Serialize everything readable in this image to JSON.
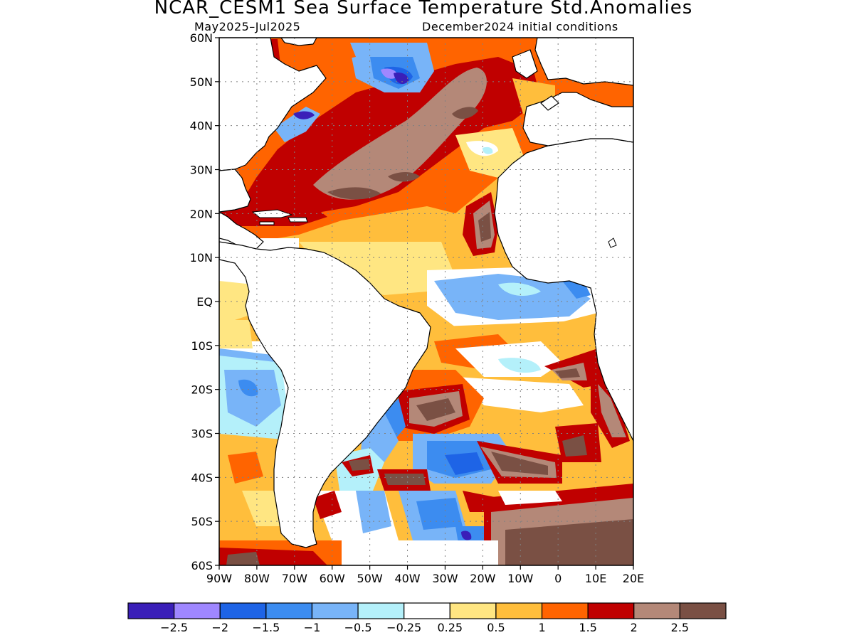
{
  "title": "NCAR_CESM1 Sea Surface Temperature Std.Anomalies",
  "subtitle_left": "May2025–Jul2025",
  "subtitle_right": "December2024 initial conditions",
  "map": {
    "lon_range": [
      -90,
      20
    ],
    "lat_range": [
      -60,
      60
    ],
    "y_ticks": [
      {
        "value": 60,
        "label": "60N"
      },
      {
        "value": 50,
        "label": "50N"
      },
      {
        "value": 40,
        "label": "40N"
      },
      {
        "value": 30,
        "label": "30N"
      },
      {
        "value": 20,
        "label": "20N"
      },
      {
        "value": 10,
        "label": "10N"
      },
      {
        "value": 0,
        "label": "EQ"
      },
      {
        "value": -10,
        "label": "10S"
      },
      {
        "value": -20,
        "label": "20S"
      },
      {
        "value": -30,
        "label": "30S"
      },
      {
        "value": -40,
        "label": "40S"
      },
      {
        "value": -50,
        "label": "50S"
      },
      {
        "value": -60,
        "label": "60S"
      }
    ],
    "x_ticks": [
      {
        "value": -90,
        "label": "90W"
      },
      {
        "value": -80,
        "label": "80W"
      },
      {
        "value": -70,
        "label": "70W"
      },
      {
        "value": -60,
        "label": "60W"
      },
      {
        "value": -50,
        "label": "50W"
      },
      {
        "value": -40,
        "label": "40W"
      },
      {
        "value": -30,
        "label": "30W"
      },
      {
        "value": -20,
        "label": "20W"
      },
      {
        "value": -10,
        "label": "10W"
      },
      {
        "value": 0,
        "label": "0"
      },
      {
        "value": 10,
        "label": "10E"
      },
      {
        "value": 20,
        "label": "20E"
      }
    ],
    "grid": "dotted"
  },
  "colorbar": {
    "colors": [
      "#3a1fb8",
      "#9f87ff",
      "#1e64e6",
      "#3c8cf0",
      "#78b4f8",
      "#b4f0fa",
      "#ffffff",
      "#ffe682",
      "#ffbe3c",
      "#ff6400",
      "#c00000",
      "#b48878",
      "#7a5044"
    ],
    "labels": [
      "−2.5",
      "−2",
      "−1.5",
      "−1",
      "−0.5",
      "−0.25",
      "0.25",
      "0.5",
      "1",
      "1.5",
      "2",
      "2.5"
    ]
  }
}
